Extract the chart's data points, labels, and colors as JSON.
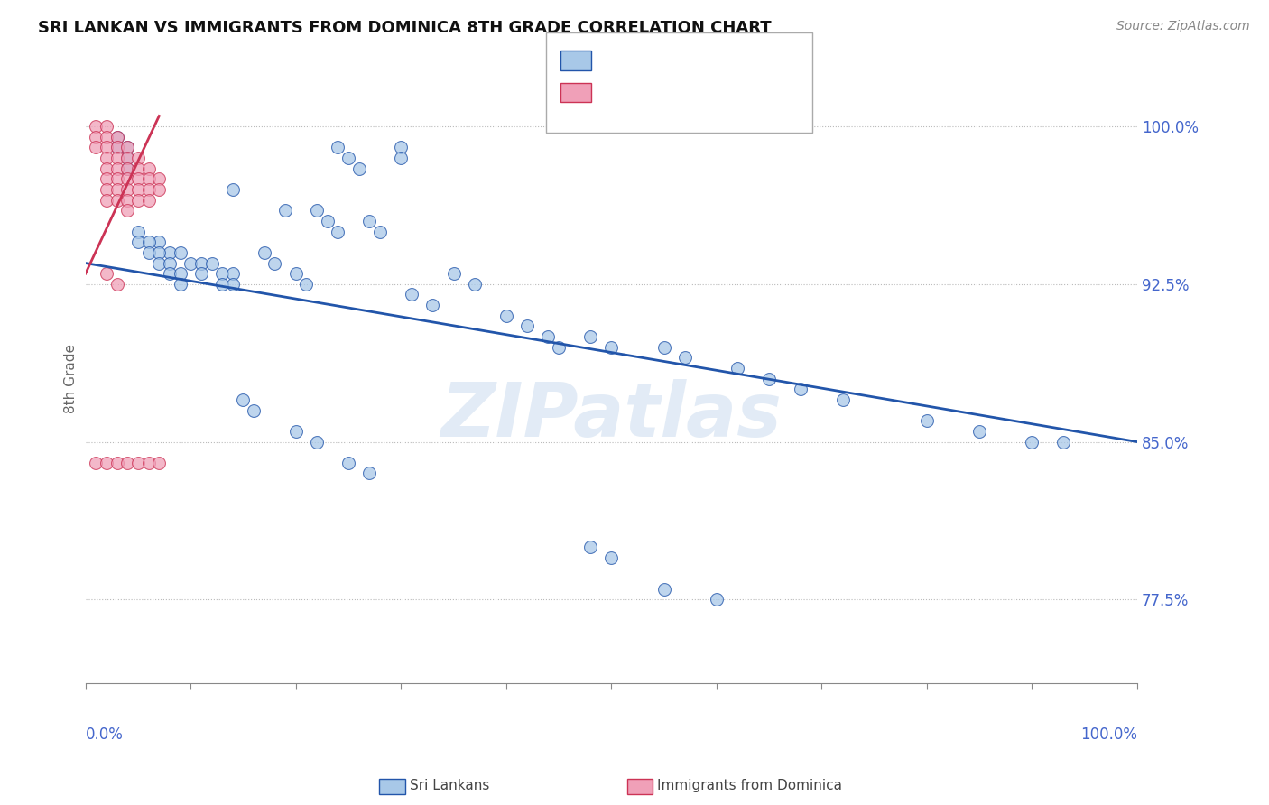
{
  "title": "SRI LANKAN VS IMMIGRANTS FROM DOMINICA 8TH GRADE CORRELATION CHART",
  "source": "Source: ZipAtlas.com",
  "ylabel": "8th Grade",
  "yticks": [
    0.775,
    0.85,
    0.925,
    1.0
  ],
  "ytick_labels": [
    "77.5%",
    "85.0%",
    "92.5%",
    "100.0%"
  ],
  "xlim": [
    0.0,
    1.0
  ],
  "ylim": [
    0.735,
    1.025
  ],
  "blue_color": "#a8c8e8",
  "pink_color": "#f0a0b8",
  "blue_line_color": "#2255aa",
  "pink_line_color": "#cc3355",
  "watermark": "ZIPatlas",
  "blue_x": [
    0.24,
    0.25,
    0.26,
    0.3,
    0.3,
    0.14,
    0.19,
    0.22,
    0.23,
    0.24,
    0.27,
    0.28,
    0.07,
    0.08,
    0.09,
    0.1,
    0.11,
    0.11,
    0.12,
    0.13,
    0.13,
    0.14,
    0.14,
    0.05,
    0.05,
    0.06,
    0.06,
    0.07,
    0.07,
    0.08,
    0.08,
    0.09,
    0.09,
    0.03,
    0.03,
    0.04,
    0.04,
    0.04,
    0.35,
    0.37,
    0.44,
    0.45,
    0.48,
    0.5,
    0.55,
    0.57,
    0.62,
    0.65,
    0.17,
    0.18,
    0.2,
    0.21,
    0.31,
    0.33,
    0.4,
    0.42,
    0.68,
    0.72,
    0.8,
    0.85,
    0.9,
    0.93,
    0.15,
    0.16,
    0.2,
    0.22,
    0.25,
    0.27,
    0.48,
    0.5,
    0.55,
    0.6
  ],
  "blue_y": [
    0.99,
    0.985,
    0.98,
    0.99,
    0.985,
    0.97,
    0.96,
    0.96,
    0.955,
    0.95,
    0.955,
    0.95,
    0.945,
    0.94,
    0.94,
    0.935,
    0.935,
    0.93,
    0.935,
    0.93,
    0.925,
    0.93,
    0.925,
    0.95,
    0.945,
    0.945,
    0.94,
    0.94,
    0.935,
    0.935,
    0.93,
    0.93,
    0.925,
    0.995,
    0.99,
    0.99,
    0.985,
    0.98,
    0.93,
    0.925,
    0.9,
    0.895,
    0.9,
    0.895,
    0.895,
    0.89,
    0.885,
    0.88,
    0.94,
    0.935,
    0.93,
    0.925,
    0.92,
    0.915,
    0.91,
    0.905,
    0.875,
    0.87,
    0.86,
    0.855,
    0.85,
    0.85,
    0.87,
    0.865,
    0.855,
    0.85,
    0.84,
    0.835,
    0.8,
    0.795,
    0.78,
    0.775
  ],
  "pink_x": [
    0.01,
    0.01,
    0.01,
    0.02,
    0.02,
    0.02,
    0.02,
    0.02,
    0.02,
    0.02,
    0.02,
    0.03,
    0.03,
    0.03,
    0.03,
    0.03,
    0.03,
    0.03,
    0.04,
    0.04,
    0.04,
    0.04,
    0.04,
    0.04,
    0.04,
    0.05,
    0.05,
    0.05,
    0.05,
    0.05,
    0.06,
    0.06,
    0.06,
    0.06,
    0.07,
    0.07,
    0.01,
    0.02,
    0.03,
    0.04,
    0.05,
    0.06,
    0.07,
    0.02,
    0.03
  ],
  "pink_y": [
    1.0,
    0.995,
    0.99,
    1.0,
    0.995,
    0.99,
    0.985,
    0.98,
    0.975,
    0.97,
    0.965,
    0.995,
    0.99,
    0.985,
    0.98,
    0.975,
    0.97,
    0.965,
    0.99,
    0.985,
    0.98,
    0.975,
    0.97,
    0.965,
    0.96,
    0.985,
    0.98,
    0.975,
    0.97,
    0.965,
    0.98,
    0.975,
    0.97,
    0.965,
    0.975,
    0.97,
    0.84,
    0.84,
    0.84,
    0.84,
    0.84,
    0.84,
    0.84,
    0.93,
    0.925
  ],
  "blue_line_x0": 0.0,
  "blue_line_y0": 0.935,
  "blue_line_x1": 1.0,
  "blue_line_y1": 0.85,
  "pink_line_x0": 0.0,
  "pink_line_y0": 0.93,
  "pink_line_x1": 0.07,
  "pink_line_y1": 1.005
}
